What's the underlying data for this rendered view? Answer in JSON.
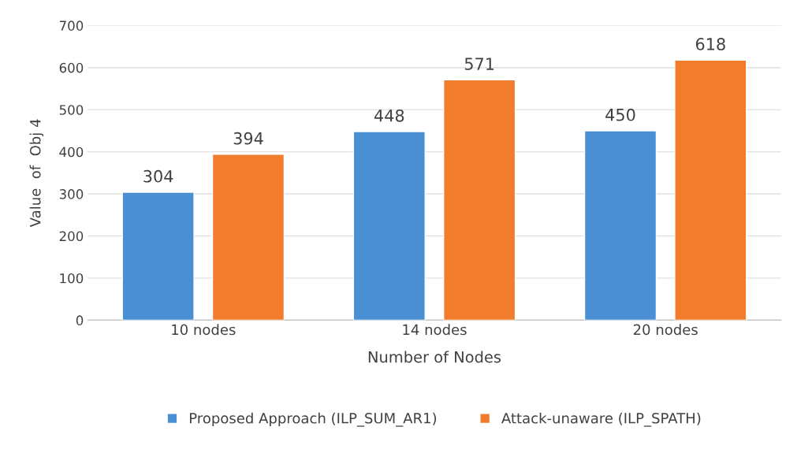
{
  "chart_data": {
    "type": "bar",
    "xlabel": "Number of Nodes",
    "ylabel": "Value  of  Obj 4",
    "categories": [
      "10 nodes",
      "14 nodes",
      "20 nodes"
    ],
    "series": [
      {
        "name": "Proposed Approach (ILP_SUM_AR1)",
        "color": "#4a8fd4",
        "values": [
          304,
          448,
          450
        ]
      },
      {
        "name": "Attack-unaware (ILP_SPATH)",
        "color": "#f07c2c",
        "values": [
          394,
          571,
          618
        ]
      }
    ],
    "ylim": [
      0,
      700
    ],
    "yticks": [
      0,
      100,
      200,
      300,
      400,
      500,
      600,
      700
    ],
    "grid": "y",
    "legend": "bottom",
    "data_labels": true
  }
}
